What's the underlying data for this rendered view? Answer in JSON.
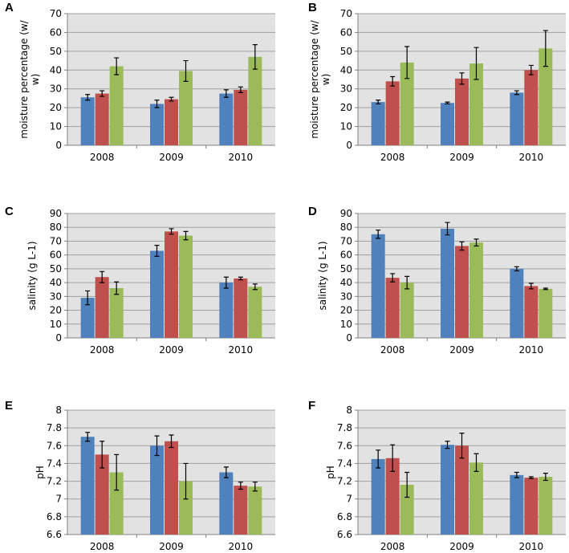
{
  "colors": {
    "series": [
      "#4f81bd",
      "#c0504d",
      "#9bbb59"
    ],
    "plot_bg": "#e2e2e2",
    "grid": "#a0a0a0",
    "error_bar": "#000000"
  },
  "chart_data": [
    {
      "panel": "A",
      "type": "bar",
      "categories": [
        "2008",
        "2009",
        "2010"
      ],
      "ylabel": [
        "moisture percentage (w/",
        "w)"
      ],
      "ylim": [
        0,
        70
      ],
      "yticks": [
        0,
        10,
        20,
        30,
        40,
        50,
        60,
        70
      ],
      "series": [
        {
          "values": [
            25.5,
            22,
            27.5
          ],
          "errors": [
            1.5,
            2,
            2
          ]
        },
        {
          "values": [
            27.5,
            24.5,
            29.5
          ],
          "errors": [
            1.5,
            1,
            1.5
          ]
        },
        {
          "values": [
            42,
            39.5,
            47
          ],
          "errors": [
            4.5,
            5.5,
            6.5
          ]
        }
      ]
    },
    {
      "panel": "B",
      "type": "bar",
      "categories": [
        "2008",
        "2009",
        "2010"
      ],
      "ylabel": [
        "moisture percentage (w/",
        "w)"
      ],
      "ylim": [
        0,
        70
      ],
      "yticks": [
        0,
        10,
        20,
        30,
        40,
        50,
        60,
        70
      ],
      "series": [
        {
          "values": [
            23,
            22.5,
            28
          ],
          "errors": [
            1,
            0.5,
            1
          ]
        },
        {
          "values": [
            34,
            35.5,
            40
          ],
          "errors": [
            2.5,
            3,
            2.5
          ]
        },
        {
          "values": [
            44,
            43.5,
            51.5
          ],
          "errors": [
            8.5,
            8.5,
            9.5
          ]
        }
      ]
    },
    {
      "panel": "C",
      "type": "bar",
      "categories": [
        "2008",
        "2009",
        "2010"
      ],
      "ylabel": [
        "salinity (g L-1)"
      ],
      "ylim": [
        0,
        90
      ],
      "yticks": [
        0,
        10,
        20,
        30,
        40,
        50,
        60,
        70,
        80,
        90
      ],
      "series": [
        {
          "values": [
            29,
            63,
            40
          ],
          "errors": [
            5,
            4,
            4
          ]
        },
        {
          "values": [
            44,
            77,
            43
          ],
          "errors": [
            4,
            2,
            1
          ]
        },
        {
          "values": [
            36,
            74,
            37
          ],
          "errors": [
            4.5,
            3,
            2
          ]
        }
      ]
    },
    {
      "panel": "D",
      "type": "bar",
      "categories": [
        "2008",
        "2009",
        "2010"
      ],
      "ylabel": [
        "salinity (g L-1)"
      ],
      "ylim": [
        0,
        90
      ],
      "yticks": [
        0,
        10,
        20,
        30,
        40,
        50,
        60,
        70,
        80,
        90
      ],
      "series": [
        {
          "values": [
            75,
            79,
            50
          ],
          "errors": [
            3,
            4.5,
            1.5
          ]
        },
        {
          "values": [
            43.5,
            66.5,
            37.5
          ],
          "errors": [
            3,
            3,
            2
          ]
        },
        {
          "values": [
            40,
            69,
            35.5
          ],
          "errors": [
            4.5,
            2.5,
            0.5
          ]
        }
      ]
    },
    {
      "panel": "E",
      "type": "bar",
      "categories": [
        "2008",
        "2009",
        "2010"
      ],
      "ylabel": [
        "pH"
      ],
      "ylim": [
        6.6,
        8
      ],
      "yticks": [
        6.6,
        6.8,
        7,
        7.2,
        7.4,
        7.6,
        7.8,
        8
      ],
      "ytick_labels": [
        "6.6",
        "6.8",
        "7",
        "7.2",
        "7.4",
        "7.6",
        "7.8",
        "8"
      ],
      "series": [
        {
          "values": [
            7.7,
            7.6,
            7.3
          ],
          "errors": [
            0.05,
            0.11,
            0.06
          ]
        },
        {
          "values": [
            7.5,
            7.65,
            7.15
          ],
          "errors": [
            0.15,
            0.07,
            0.04
          ]
        },
        {
          "values": [
            7.3,
            7.2,
            7.14
          ],
          "errors": [
            0.2,
            0.2,
            0.05
          ]
        }
      ]
    },
    {
      "panel": "F",
      "type": "bar",
      "categories": [
        "2008",
        "2009",
        "2010"
      ],
      "ylabel": [
        "pH"
      ],
      "ylim": [
        6.6,
        8
      ],
      "yticks": [
        6.6,
        6.8,
        7,
        7.2,
        7.4,
        7.6,
        7.8,
        8
      ],
      "ytick_labels": [
        "6.6",
        "6.8",
        "7",
        "7.2",
        "7.4",
        "7.6",
        "7.8",
        "8"
      ],
      "series": [
        {
          "values": [
            7.45,
            7.61,
            7.27
          ],
          "errors": [
            0.1,
            0.04,
            0.03
          ]
        },
        {
          "values": [
            7.46,
            7.6,
            7.24
          ],
          "errors": [
            0.15,
            0.14,
            0.01
          ]
        },
        {
          "values": [
            7.16,
            7.41,
            7.25
          ],
          "errors": [
            0.14,
            0.1,
            0.04
          ]
        }
      ]
    }
  ]
}
